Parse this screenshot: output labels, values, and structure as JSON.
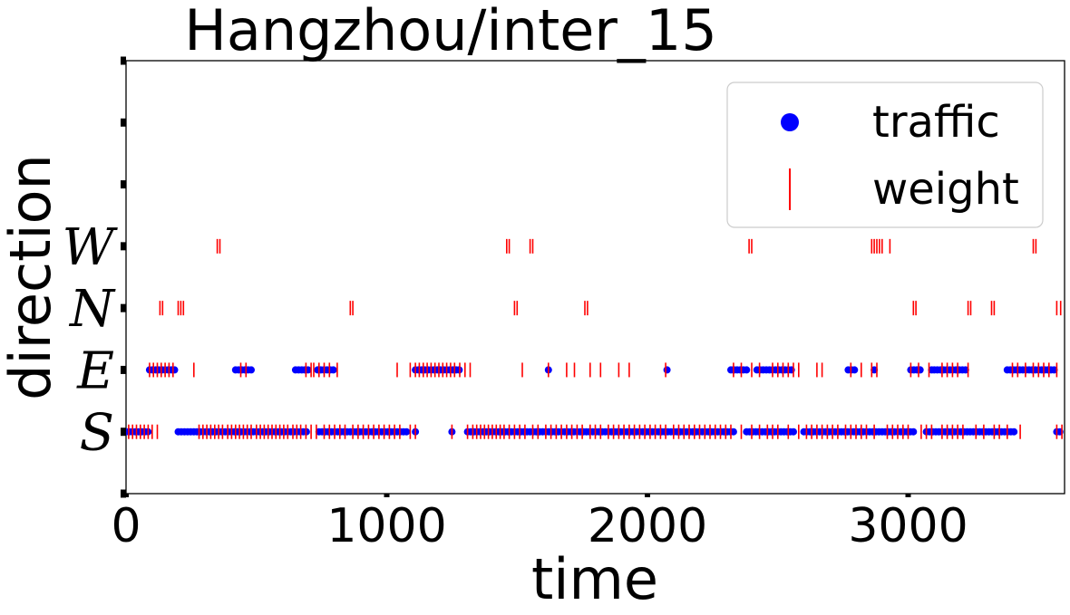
{
  "chart_data": {
    "type": "scatter",
    "title": "Hangzhou/inter_15",
    "xlabel": "time",
    "ylabel": "direction",
    "xlim": [
      0,
      3600
    ],
    "ylim": [
      -1,
      6
    ],
    "xticks": [
      0,
      1000,
      2000,
      3000
    ],
    "xtick_labels": [
      "0",
      "1000",
      "2000",
      "3000"
    ],
    "yticks": [
      -1,
      0,
      1,
      2,
      3,
      4,
      5,
      6
    ],
    "ytick_labels": [
      "",
      "S",
      "E",
      "N",
      "W",
      "",
      "",
      ""
    ],
    "grid": false,
    "legend_position": "top-right",
    "series": [
      {
        "name": "traffic",
        "marker": "circle",
        "color": "#0000ff",
        "segments": [
          {
            "y": 0,
            "x_start": 0,
            "x_end": 95
          },
          {
            "y": 0,
            "x_start": 200,
            "x_end": 700
          },
          {
            "y": 0,
            "x_start": 740,
            "x_end": 1080
          },
          {
            "y": 0,
            "x_start": 1110,
            "x_end": 1110
          },
          {
            "y": 0,
            "x_start": 1250,
            "x_end": 1250
          },
          {
            "y": 0,
            "x_start": 1310,
            "x_end": 2330
          },
          {
            "y": 0,
            "x_start": 2380,
            "x_end": 2570
          },
          {
            "y": 0,
            "x_start": 2600,
            "x_end": 3020
          },
          {
            "y": 0,
            "x_start": 3070,
            "x_end": 3410
          },
          {
            "y": 0,
            "x_start": 3570,
            "x_end": 3590
          },
          {
            "y": 1,
            "x_start": 90,
            "x_end": 195
          },
          {
            "y": 1,
            "x_start": 420,
            "x_end": 480
          },
          {
            "y": 1,
            "x_start": 650,
            "x_end": 700
          },
          {
            "y": 1,
            "x_start": 735,
            "x_end": 800
          },
          {
            "y": 1,
            "x_start": 1110,
            "x_end": 1280
          },
          {
            "y": 1,
            "x_start": 2075,
            "x_end": 2075
          },
          {
            "y": 1,
            "x_start": 2320,
            "x_end": 2390
          },
          {
            "y": 1,
            "x_start": 2420,
            "x_end": 2560
          },
          {
            "y": 1,
            "x_start": 2770,
            "x_end": 2800
          },
          {
            "y": 1,
            "x_start": 2870,
            "x_end": 2870
          },
          {
            "y": 1,
            "x_start": 3010,
            "x_end": 3050
          },
          {
            "y": 1,
            "x_start": 3100,
            "x_end": 3220
          },
          {
            "y": 1,
            "x_start": 3380,
            "x_end": 3570
          }
        ],
        "points": [
          {
            "x": 1620,
            "y": 1
          },
          {
            "x": 2330,
            "y": 1
          },
          {
            "x": 3090,
            "y": 1
          }
        ]
      },
      {
        "name": "weight",
        "marker": "vline",
        "color": "#ff0000",
        "x_by_y": {
          "0": [
            10,
            25,
            40,
            55,
            70,
            85,
            100,
            120,
            280,
            295,
            310,
            325,
            340,
            355,
            370,
            390,
            405,
            420,
            435,
            450,
            465,
            480,
            500,
            515,
            530,
            545,
            560,
            575,
            590,
            605,
            620,
            640,
            655,
            670,
            690,
            710,
            730,
            760,
            780,
            800,
            820,
            840,
            870,
            890,
            910,
            930,
            950,
            970,
            990,
            1010,
            1030,
            1050,
            1090,
            1110,
            1250,
            1310,
            1330,
            1345,
            1360,
            1375,
            1390,
            1405,
            1420,
            1435,
            1450,
            1470,
            1490,
            1510,
            1530,
            1560,
            1580,
            1610,
            1630,
            1650,
            1670,
            1690,
            1710,
            1730,
            1750,
            1780,
            1800,
            1820,
            1850,
            1870,
            1890,
            1910,
            1930,
            1950,
            1970,
            1990,
            2010,
            2030,
            2050,
            2070,
            2100,
            2120,
            2140,
            2160,
            2180,
            2200,
            2220,
            2240,
            2260,
            2280,
            2300,
            2320,
            2360,
            2400,
            2430,
            2460,
            2480,
            2500,
            2540,
            2580,
            2610,
            2630,
            2650,
            2670,
            2690,
            2710,
            2730,
            2760,
            2780,
            2800,
            2820,
            2840,
            2870,
            2920,
            2940,
            2960,
            2980,
            3000,
            3050,
            3070,
            3090,
            3130,
            3150,
            3170,
            3190,
            3210,
            3260,
            3290,
            3330,
            3350,
            3380,
            3430,
            3570,
            3590
          ],
          "1": [
            90,
            105,
            120,
            135,
            150,
            165,
            180,
            260,
            440,
            460,
            690,
            710,
            720,
            740,
            760,
            780,
            810,
            1040,
            1090,
            1110,
            1125,
            1140,
            1155,
            1170,
            1185,
            1200,
            1215,
            1230,
            1245,
            1260,
            1280,
            1300,
            1320,
            1520,
            1620,
            1690,
            1720,
            1780,
            1820,
            1890,
            1930,
            2070,
            2330,
            2360,
            2400,
            2430,
            2480,
            2500,
            2520,
            2540,
            2560,
            2580,
            2650,
            2670,
            2780,
            2820,
            2860,
            2880,
            3010,
            3040,
            3080,
            3130,
            3150,
            3170,
            3190,
            3230,
            3400,
            3420,
            3450,
            3480,
            3500,
            3520,
            3540,
            3570
          ],
          "2": [
            130,
            140,
            200,
            210,
            220,
            860,
            870,
            1490,
            1500,
            1760,
            1770,
            3020,
            3030,
            3230,
            3240,
            3320,
            3330,
            3570,
            3585
          ],
          "3": [
            350,
            360,
            1460,
            1470,
            1550,
            1560,
            2390,
            2400,
            2860,
            2870,
            2880,
            2890,
            2900,
            2930,
            3480,
            3490
          ]
        }
      }
    ]
  }
}
